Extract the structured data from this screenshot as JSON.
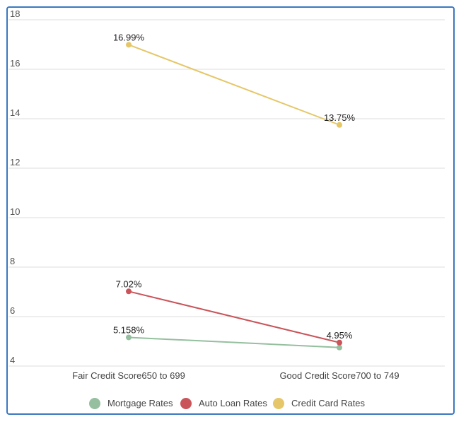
{
  "chart_data": {
    "type": "line",
    "categories": [
      "Fair Credit Score650 to 699",
      "Good Credit Score700 to 749"
    ],
    "yticks": [
      4,
      6,
      8,
      10,
      12,
      14,
      16,
      18
    ],
    "ylim": [
      4,
      18
    ],
    "grid": true,
    "legend_position": "bottom",
    "series": [
      {
        "name": "Mortgage Rates",
        "color": "#95bf9f",
        "values": [
          5.158,
          4.75
        ],
        "labels": [
          "5.158%",
          ""
        ]
      },
      {
        "name": "Auto Loan Rates",
        "color": "#c9555a",
        "values": [
          7.02,
          4.95
        ],
        "labels": [
          "7.02%",
          "4.95%"
        ]
      },
      {
        "name": "Credit Card Rates",
        "color": "#e5c769",
        "values": [
          16.99,
          13.75
        ],
        "labels": [
          "16.99%",
          "13.75%"
        ]
      }
    ]
  }
}
